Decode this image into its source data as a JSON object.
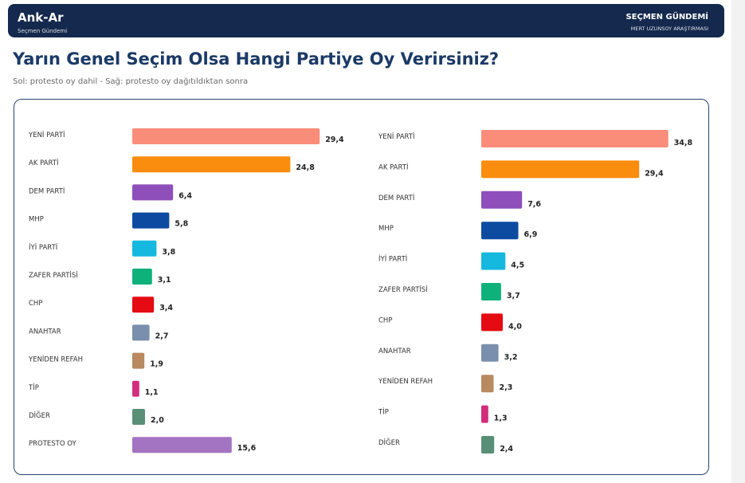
{
  "header": {
    "brand": "Ank-Ar",
    "brand_subtitle": "Seçmen Gündemi",
    "right_title": "SEÇMEN GÜNDEMİ",
    "right_subtitle": "MERT UZUNSOY ARAŞTIRMASI",
    "background_color": "#14294d"
  },
  "page": {
    "title": "Yarın Genel Seçim Olsa Hangi Partiye Oy Verirsiniz?",
    "subtitle": "Sol: protesto oy dahil - Sağ: protesto oy dağıtıldıktan sonra"
  },
  "chart_data": [
    {
      "type": "bar",
      "orientation": "horizontal",
      "categories": [
        "YENİ PARTİ",
        "AK PARTİ",
        "DEM PARTİ",
        "MHP",
        "İYİ PARTİ",
        "ZAFER PARTİSİ",
        "CHP",
        "ANAHTAR",
        "YENİDEN REFAH",
        "TİP",
        "DİĞER",
        "PROTESTO OY"
      ],
      "values": [
        29.4,
        24.8,
        6.4,
        5.8,
        3.8,
        3.1,
        3.4,
        2.7,
        1.9,
        1.1,
        2.0,
        15.6
      ],
      "value_labels": [
        "29,4",
        "24,8",
        "6,4",
        "5,8",
        "3,8",
        "3,1",
        "3,4",
        "2,7",
        "1,9",
        "1,1",
        "2,0",
        "15,6"
      ],
      "colors": [
        "#fa8c7a",
        "#fa8c0e",
        "#8e4fba",
        "#0c4ba0",
        "#15b8de",
        "#0fb17a",
        "#e40b13",
        "#7a8fad",
        "#b98960",
        "#d12e7c",
        "#5a8f77",
        "#a374c1"
      ],
      "xlim": [
        0,
        30
      ],
      "grid": false,
      "legend": "none"
    },
    {
      "type": "bar",
      "orientation": "horizontal",
      "categories": [
        "YENİ PARTİ",
        "AK PARTİ",
        "DEM PARTİ",
        "MHP",
        "İYİ PARTİ",
        "ZAFER PARTİSİ",
        "CHP",
        "ANAHTAR",
        "YENİDEN REFAH",
        "TİP",
        "DİĞER"
      ],
      "values": [
        34.8,
        29.4,
        7.6,
        6.9,
        4.5,
        3.7,
        4.0,
        3.2,
        2.3,
        1.3,
        2.4
      ],
      "value_labels": [
        "34,8",
        "29,4",
        "7,6",
        "6,9",
        "4,5",
        "3,7",
        "4,0",
        "3,2",
        "2,3",
        "1,3",
        "2,4"
      ],
      "colors": [
        "#fa8c7a",
        "#fa8c0e",
        "#8e4fba",
        "#0c4ba0",
        "#15b8de",
        "#0fb17a",
        "#e40b13",
        "#7a8fad",
        "#b98960",
        "#d12e7c",
        "#5a8f77"
      ],
      "xlim": [
        0,
        35
      ],
      "grid": false,
      "legend": "none"
    }
  ]
}
